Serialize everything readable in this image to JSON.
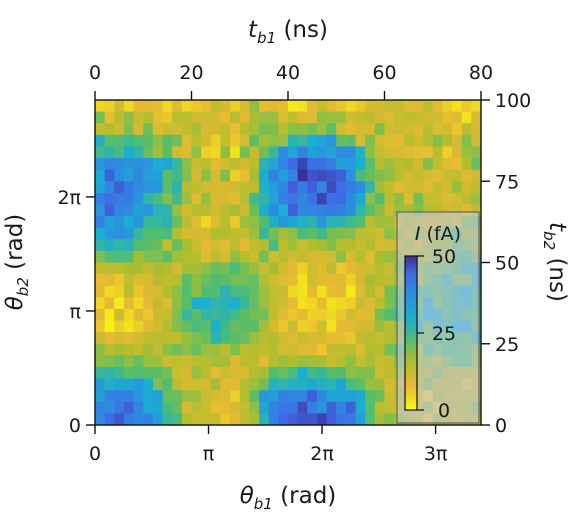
{
  "chart_data": {
    "type": "heatmap",
    "x_bottom": {
      "label_var": "θ",
      "label_sub": "b1",
      "label_unit": " (rad)",
      "range": [
        0,
        3.4
      ],
      "ticks": [
        0,
        1,
        2,
        3
      ],
      "tick_labels": [
        "0",
        "π",
        "2π",
        "3π"
      ]
    },
    "y_left": {
      "label_var": "θ",
      "label_sub": "b2",
      "label_unit": " (rad)",
      "range": [
        0,
        2.85
      ],
      "ticks": [
        0,
        1,
        2
      ],
      "tick_labels": [
        "0",
        "π",
        "2π"
      ]
    },
    "x_top": {
      "label_var": "t",
      "label_sub": "b1",
      "label_unit": " (ns)",
      "range": [
        0,
        80
      ],
      "ticks": [
        0,
        20,
        40,
        60,
        80
      ],
      "tick_labels": [
        "0",
        "20",
        "40",
        "60",
        "80"
      ]
    },
    "y_right": {
      "label_var": "t",
      "label_sub": "b2",
      "label_unit": " (ns)",
      "range": [
        0,
        100
      ],
      "ticks": [
        0,
        25,
        50,
        75,
        100
      ],
      "tick_labels": [
        "0",
        "25",
        "50",
        "75",
        "100"
      ]
    },
    "colorbar": {
      "label_var": "I",
      "label_unit": " (fA)",
      "range": [
        0,
        50
      ],
      "ticks": [
        0,
        25,
        50
      ],
      "tick_labels": [
        "0",
        "25",
        "50"
      ],
      "colormap": "parula"
    },
    "grid_rows": [
      [
        4,
        5,
        11,
        4,
        8,
        8,
        7,
        4,
        9,
        4,
        6,
        7,
        13,
        10,
        5,
        10,
        18,
        7,
        9,
        7,
        2,
        3,
        8,
        12,
        8,
        6,
        4,
        6,
        10,
        10,
        13,
        12,
        9,
        9,
        13,
        8,
        5,
        3,
        6,
        4
      ],
      [
        20,
        7,
        14,
        18,
        12,
        15,
        7,
        6,
        14,
        14,
        11,
        11,
        10,
        7,
        14,
        8,
        16,
        17,
        17,
        9,
        13,
        9,
        9,
        18,
        17,
        17,
        11,
        13,
        14,
        11,
        9,
        12,
        13,
        13,
        11,
        11,
        7,
        9,
        3,
        10
      ],
      [
        13,
        15,
        12,
        19,
        10,
        20,
        9,
        12,
        11,
        13,
        16,
        10,
        10,
        13,
        7,
        14,
        16,
        20,
        19,
        14,
        18,
        18,
        20,
        17,
        22,
        11,
        8,
        10,
        10,
        19,
        11,
        12,
        11,
        9,
        14,
        9,
        11,
        6,
        14,
        10
      ],
      [
        29,
        22,
        23,
        25,
        23,
        22,
        18,
        22,
        20,
        9,
        14,
        10,
        5,
        13,
        6,
        10,
        22,
        16,
        18,
        17,
        28,
        26,
        30,
        32,
        36,
        21,
        22,
        10,
        19,
        10,
        9,
        8,
        14,
        11,
        15,
        19,
        15,
        10,
        19,
        11
      ],
      [
        25,
        27,
        24,
        30,
        27,
        21,
        16,
        22,
        11,
        9,
        18,
        5,
        4,
        18,
        3,
        20,
        13,
        20,
        26,
        38,
        32,
        40,
        33,
        36,
        32,
        38,
        38,
        29,
        18,
        13,
        10,
        10,
        9,
        7,
        7,
        14,
        5,
        10,
        17,
        18
      ],
      [
        35,
        39,
        38,
        36,
        37,
        36,
        30,
        32,
        26,
        18,
        12,
        14,
        8,
        11,
        14,
        11,
        14,
        28,
        32,
        39,
        44,
        48,
        43,
        43,
        40,
        33,
        34,
        30,
        22,
        15,
        17,
        14,
        15,
        11,
        19,
        13,
        9,
        7,
        15,
        21
      ],
      [
        31,
        45,
        37,
        34,
        39,
        34,
        33,
        22,
        25,
        19,
        10,
        18,
        10,
        19,
        5,
        7,
        16,
        30,
        40,
        34,
        39,
        51,
        46,
        47,
        46,
        45,
        37,
        24,
        21,
        19,
        18,
        14,
        11,
        13,
        10,
        9,
        12,
        13,
        9,
        11
      ],
      [
        32,
        39,
        45,
        41,
        38,
        36,
        35,
        22,
        28,
        15,
        13,
        11,
        10,
        10,
        11,
        13,
        14,
        29,
        34,
        39,
        45,
        41,
        45,
        39,
        47,
        43,
        41,
        38,
        27,
        16,
        13,
        8,
        11,
        11,
        9,
        13,
        11,
        17,
        10,
        14
      ],
      [
        40,
        43,
        41,
        41,
        36,
        27,
        24,
        19,
        25,
        17,
        9,
        17,
        10,
        10,
        8,
        14,
        25,
        27,
        32,
        40,
        42,
        39,
        43,
        48,
        43,
        44,
        38,
        32,
        18,
        23,
        14,
        18,
        9,
        20,
        13,
        12,
        9,
        11,
        14,
        17
      ],
      [
        36,
        45,
        39,
        38,
        33,
        36,
        28,
        27,
        17,
        11,
        15,
        14,
        11,
        14,
        16,
        12,
        21,
        30,
        38,
        30,
        45,
        39,
        39,
        40,
        41,
        40,
        37,
        27,
        22,
        18,
        12,
        17,
        16,
        19,
        15,
        14,
        11,
        12,
        9,
        13
      ],
      [
        40,
        33,
        36,
        30,
        36,
        26,
        26,
        28,
        21,
        14,
        9,
        4,
        9,
        14,
        6,
        17,
        18,
        23,
        29,
        35,
        32,
        29,
        28,
        36,
        28,
        28,
        25,
        23,
        14,
        17,
        16,
        12,
        15,
        13,
        12,
        11,
        12,
        10,
        19,
        20
      ],
      [
        30,
        35,
        37,
        35,
        26,
        23,
        23,
        24,
        15,
        10,
        10,
        10,
        15,
        15,
        13,
        13,
        17,
        26,
        20,
        16,
        18,
        24,
        22,
        25,
        20,
        19,
        19,
        14,
        13,
        11,
        18,
        15,
        11,
        17,
        15,
        17,
        20,
        23,
        16,
        17
      ],
      [
        27,
        29,
        27,
        28,
        23,
        22,
        21,
        13,
        21,
        16,
        12,
        8,
        11,
        9,
        14,
        8,
        13,
        15,
        24,
        14,
        16,
        12,
        15,
        16,
        19,
        15,
        15,
        12,
        15,
        10,
        11,
        12,
        15,
        10,
        16,
        16,
        16,
        21,
        19,
        17
      ],
      [
        19,
        23,
        24,
        23,
        16,
        19,
        19,
        22,
        16,
        15,
        15,
        9,
        14,
        10,
        18,
        15,
        12,
        20,
        11,
        14,
        11,
        13,
        10,
        10,
        11,
        18,
        10,
        14,
        9,
        16,
        17,
        17,
        12,
        16,
        15,
        19,
        14,
        23,
        25,
        19
      ],
      [
        13,
        14,
        14,
        16,
        16,
        13,
        16,
        15,
        11,
        16,
        16,
        18,
        21,
        20,
        24,
        20,
        17,
        12,
        16,
        11,
        8,
        5,
        11,
        8,
        14,
        6,
        8,
        10,
        11,
        15,
        12,
        19,
        23,
        17,
        20,
        19,
        21,
        23,
        27,
        27
      ],
      [
        7,
        9,
        6,
        13,
        9,
        10,
        15,
        13,
        14,
        22,
        18,
        21,
        23,
        22,
        20,
        20,
        21,
        15,
        11,
        9,
        7,
        3,
        11,
        8,
        8,
        9,
        5,
        10,
        16,
        14,
        14,
        16,
        22,
        15,
        21,
        23,
        27,
        20,
        20,
        28
      ],
      [
        8,
        4,
        5,
        14,
        6,
        10,
        10,
        15,
        18,
        23,
        18,
        23,
        23,
        28,
        24,
        24,
        21,
        17,
        13,
        12,
        4,
        3,
        8,
        3,
        7,
        8,
        2,
        9,
        15,
        10,
        20,
        22,
        23,
        24,
        24,
        22,
        24,
        27,
        30,
        26
      ],
      [
        4,
        8,
        2,
        8,
        4,
        8,
        13,
        9,
        18,
        22,
        30,
        30,
        27,
        28,
        30,
        26,
        21,
        17,
        13,
        11,
        8,
        3,
        4,
        7,
        3,
        4,
        5,
        12,
        9,
        14,
        19,
        23,
        26,
        21,
        30,
        21,
        25,
        27,
        28,
        25
      ],
      [
        8,
        2,
        11,
        4,
        9,
        6,
        12,
        13,
        19,
        26,
        22,
        27,
        26,
        27,
        25,
        22,
        20,
        20,
        13,
        8,
        6,
        8,
        5,
        5,
        4,
        6,
        11,
        8,
        9,
        20,
        23,
        25,
        24,
        24,
        30,
        28,
        24,
        27,
        24,
        23
      ],
      [
        6,
        1,
        5,
        3,
        5,
        8,
        11,
        15,
        19,
        21,
        24,
        22,
        30,
        25,
        21,
        22,
        22,
        16,
        10,
        6,
        12,
        5,
        6,
        11,
        3,
        8,
        9,
        10,
        11,
        17,
        14,
        18,
        19,
        29,
        21,
        28,
        26,
        30,
        30,
        22
      ],
      [
        12,
        8,
        10,
        9,
        10,
        13,
        14,
        14,
        13,
        17,
        19,
        21,
        28,
        24,
        22,
        21,
        17,
        14,
        15,
        11,
        9,
        12,
        10,
        10,
        7,
        7,
        6,
        13,
        14,
        12,
        15,
        16,
        26,
        21,
        20,
        24,
        22,
        24,
        22,
        27
      ],
      [
        18,
        14,
        16,
        15,
        13,
        16,
        13,
        18,
        20,
        18,
        21,
        17,
        17,
        14,
        19,
        14,
        15,
        13,
        15,
        10,
        11,
        9,
        9,
        6,
        13,
        13,
        14,
        9,
        15,
        15,
        20,
        22,
        19,
        15,
        25,
        21,
        24,
        23,
        22,
        18
      ],
      [
        18,
        19,
        21,
        18,
        21,
        17,
        17,
        12,
        13,
        12,
        14,
        14,
        16,
        16,
        9,
        14,
        14,
        8,
        15,
        17,
        15,
        17,
        16,
        16,
        12,
        15,
        18,
        13,
        16,
        12,
        13,
        19,
        17,
        16,
        17,
        14,
        19,
        22,
        23,
        17
      ],
      [
        26,
        27,
        25,
        22,
        23,
        22,
        22,
        20,
        12,
        10,
        17,
        14,
        8,
        12,
        10,
        10,
        15,
        16,
        23,
        21,
        24,
        30,
        25,
        26,
        22,
        23,
        18,
        19,
        19,
        11,
        14,
        16,
        14,
        15,
        14,
        19,
        14,
        13,
        14,
        11
      ],
      [
        35,
        29,
        32,
        32,
        35,
        30,
        19,
        23,
        14,
        10,
        11,
        10,
        16,
        8,
        8,
        15,
        17,
        20,
        29,
        27,
        29,
        29,
        31,
        29,
        28,
        33,
        24,
        22,
        17,
        17,
        10,
        12,
        10,
        13,
        19,
        12,
        12,
        15,
        7,
        10
      ],
      [
        33,
        40,
        40,
        40,
        36,
        31,
        33,
        21,
        21,
        17,
        17,
        12,
        10,
        9,
        5,
        15,
        22,
        35,
        34,
        40,
        39,
        39,
        45,
        39,
        32,
        32,
        33,
        31,
        22,
        21,
        11,
        15,
        13,
        10,
        5,
        16,
        13,
        12,
        13,
        12
      ],
      [
        39,
        38,
        42,
        45,
        39,
        31,
        32,
        24,
        21,
        10,
        14,
        12,
        7,
        8,
        10,
        13,
        18,
        32,
        40,
        42,
        42,
        47,
        40,
        36,
        45,
        39,
        45,
        30,
        23,
        14,
        13,
        12,
        12,
        11,
        17,
        6,
        14,
        14,
        15,
        18
      ],
      [
        38,
        44,
        46,
        41,
        39,
        40,
        34,
        26,
        24,
        15,
        12,
        12,
        13,
        6,
        9,
        13,
        16,
        28,
        40,
        44,
        45,
        46,
        46,
        48,
        45,
        42,
        41,
        34,
        23,
        16,
        19,
        17,
        15,
        12,
        6,
        16,
        15,
        11,
        13,
        14
      ]
    ]
  }
}
